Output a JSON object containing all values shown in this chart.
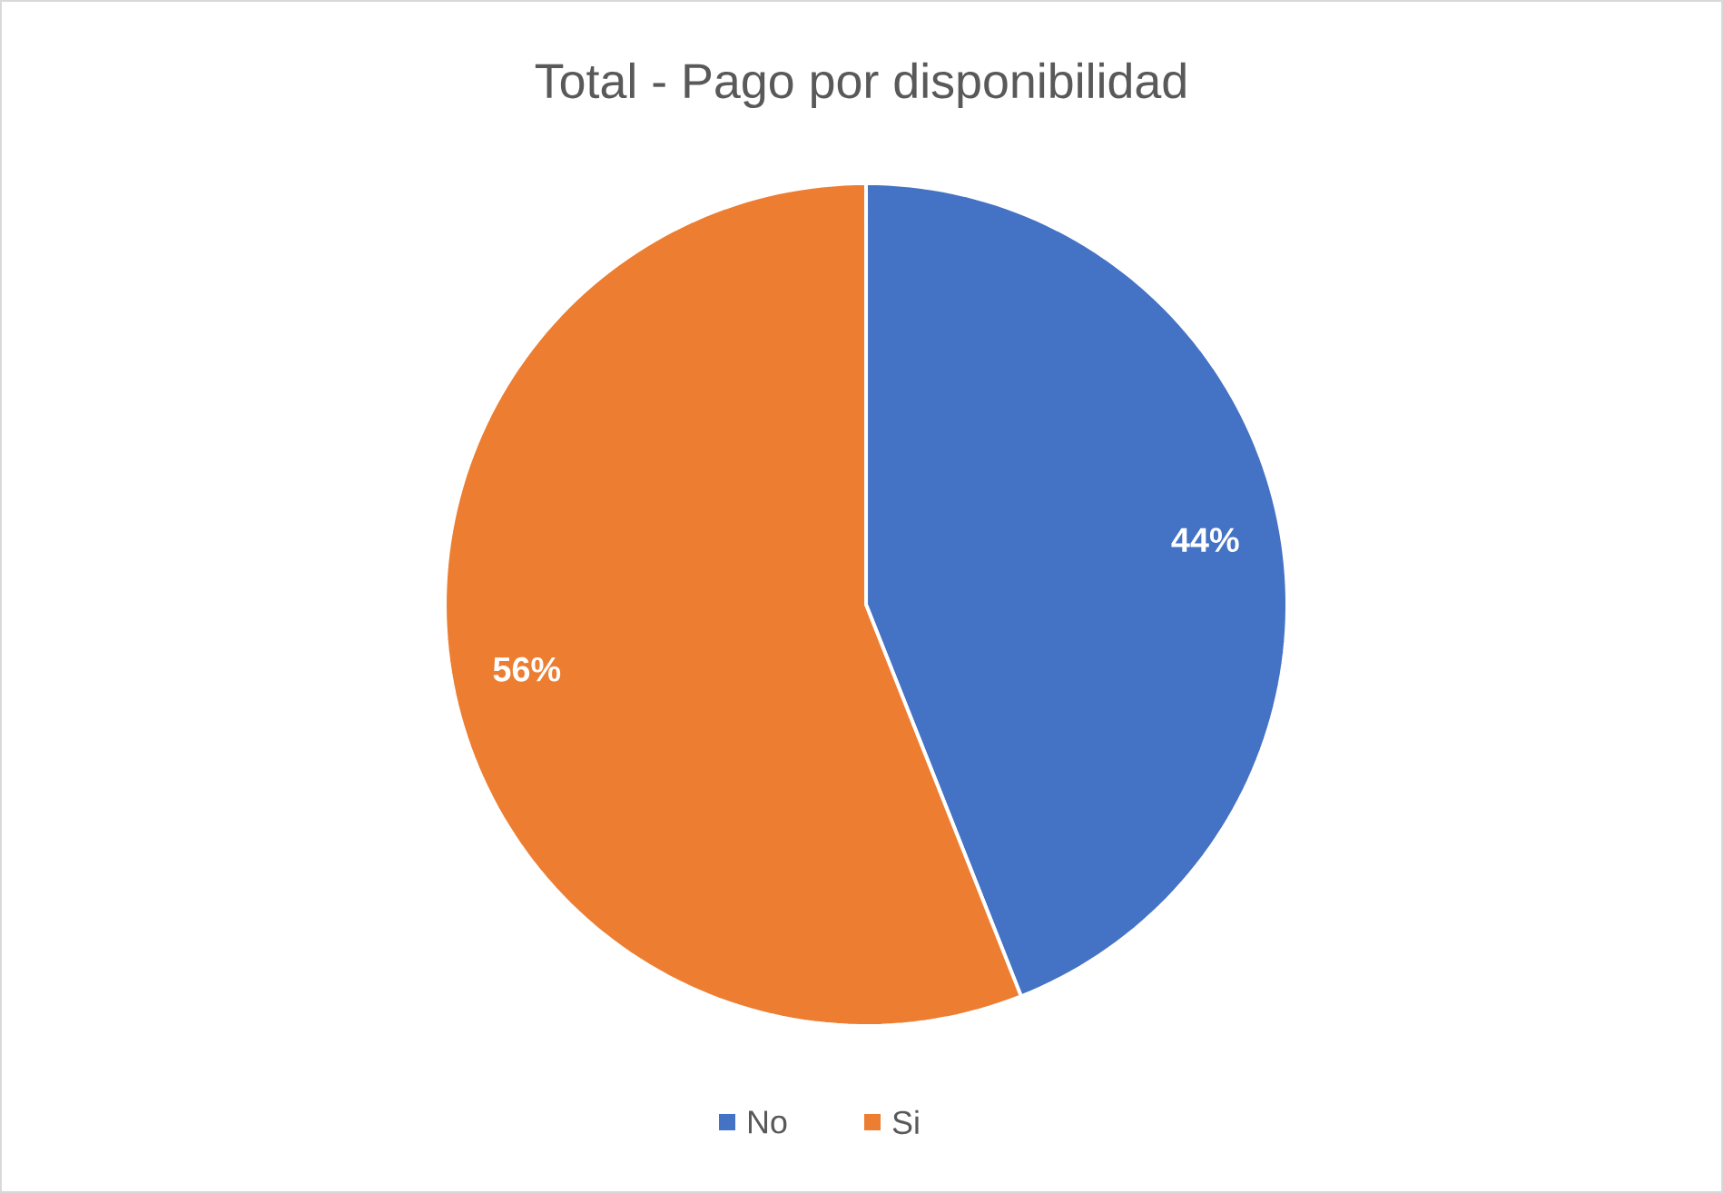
{
  "chart_data": {
    "type": "pie",
    "title": "Total - Pago por disponibilidad",
    "categories": [
      "No",
      "Si"
    ],
    "values": [
      44,
      56
    ],
    "colors": [
      "#4472c4",
      "#ed7d31"
    ],
    "value_labels": [
      "44%",
      "56%"
    ],
    "legend": "bottom"
  }
}
